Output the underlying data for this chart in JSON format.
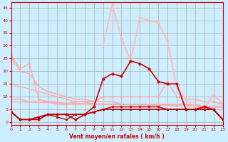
{
  "title": "",
  "xlabel": "Vent moyen/en rafales ( km/h )",
  "ylabel": "",
  "background_color": "#cceeff",
  "grid_color": "#aaaaaa",
  "xlim": [
    0,
    23
  ],
  "ylim": [
    -1,
    47
  ],
  "xticks": [
    0,
    1,
    2,
    3,
    4,
    5,
    6,
    7,
    8,
    9,
    10,
    11,
    12,
    13,
    14,
    15,
    16,
    17,
    18,
    19,
    20,
    21,
    22,
    23
  ],
  "yticks": [
    0,
    5,
    10,
    15,
    20,
    25,
    30,
    35,
    40,
    45
  ],
  "lines": [
    {
      "x": [
        0,
        1,
        2,
        3,
        4,
        5,
        6,
        7,
        8,
        9,
        10,
        11,
        12,
        13,
        14,
        15,
        16,
        17,
        18,
        19,
        20,
        21,
        22,
        23
      ],
      "y": [
        25,
        20,
        19,
        14,
        12,
        11,
        10,
        9,
        9,
        8,
        8,
        8,
        7,
        7,
        7,
        7,
        7,
        7,
        7,
        7,
        7,
        6,
        6,
        6
      ],
      "color": "#ffaaaa",
      "marker": null,
      "lw": 1.0
    },
    {
      "x": [
        0,
        1,
        2,
        3,
        4,
        5,
        6,
        7,
        8,
        9,
        10,
        11,
        12,
        13,
        14,
        15,
        16,
        17,
        18,
        19,
        20,
        21,
        22,
        23
      ],
      "y": [
        15,
        14,
        13,
        12,
        11,
        10,
        9,
        8,
        8,
        7,
        7,
        7,
        7,
        7,
        7,
        7,
        7,
        7,
        7,
        7,
        6,
        6,
        6,
        6
      ],
      "color": "#ffaaaa",
      "marker": null,
      "lw": 1.0
    },
    {
      "x": [
        0,
        1,
        2,
        3,
        4,
        5,
        6,
        7,
        8,
        9,
        10,
        11,
        12,
        13,
        14,
        15,
        16,
        17,
        18,
        19,
        20,
        21,
        22,
        23
      ],
      "y": [
        9,
        9,
        8,
        8,
        8,
        7,
        7,
        7,
        7,
        7,
        7,
        7,
        7,
        7,
        7,
        7,
        7,
        7,
        7,
        7,
        7,
        6,
        6,
        6
      ],
      "color": "#ffaaaa",
      "marker": null,
      "lw": 1.0
    },
    {
      "x": [
        0,
        23
      ],
      "y": [
        8,
        6
      ],
      "color": "#ffaaaa",
      "marker": null,
      "lw": 1.0
    },
    {
      "x": [
        0,
        1,
        2,
        3,
        4,
        5,
        6,
        7,
        8,
        9,
        10,
        11,
        12,
        13,
        14,
        15,
        16,
        17,
        18,
        19,
        20,
        21,
        22,
        23
      ],
      "y": [
        26,
        21,
        23,
        9,
        8,
        8,
        7,
        8,
        8,
        8,
        10,
        10,
        10,
        10,
        10,
        10,
        10,
        16,
        10,
        9,
        9,
        8,
        8,
        7
      ],
      "color": "#ffaaaa",
      "marker": "o",
      "lw": 1.0,
      "ms": 2.0
    },
    {
      "x": [
        0,
        1,
        2,
        3,
        4,
        5,
        6,
        7,
        8,
        9,
        10,
        11,
        12,
        13,
        14,
        15,
        16,
        17,
        18,
        19,
        20,
        21,
        22,
        23
      ],
      "y": [
        null,
        null,
        null,
        null,
        null,
        null,
        null,
        null,
        null,
        null,
        30,
        46,
        33,
        24,
        41,
        40,
        39,
        32,
        14,
        9,
        6,
        5,
        11,
        7
      ],
      "color": "#ffbbbb",
      "marker": "o",
      "lw": 1.3,
      "ms": 2.5
    },
    {
      "x": [
        0,
        1,
        2,
        3,
        4,
        5,
        6,
        7,
        8,
        9,
        10,
        11,
        12,
        13,
        14,
        15,
        16,
        17,
        18,
        19,
        20,
        21,
        22,
        23
      ],
      "y": [
        4,
        1,
        1,
        1,
        3,
        3,
        3,
        1,
        3,
        6,
        17,
        19,
        18,
        24,
        23,
        21,
        16,
        15,
        15,
        5,
        5,
        6,
        5,
        1
      ],
      "color": "#cc0000",
      "marker": "o",
      "lw": 1.2,
      "ms": 2.5
    },
    {
      "x": [
        0,
        1,
        2,
        3,
        4,
        5,
        6,
        7,
        8,
        9,
        10,
        11,
        12,
        13,
        14,
        15,
        16,
        17,
        18,
        19,
        20,
        21,
        22,
        23
      ],
      "y": [
        4,
        1,
        1,
        2,
        3,
        2,
        1,
        3,
        3,
        4,
        5,
        6,
        6,
        6,
        6,
        6,
        6,
        5,
        5,
        5,
        5,
        5,
        5,
        1
      ],
      "color": "#cc0000",
      "marker": "o",
      "lw": 1.0,
      "ms": 2.0
    },
    {
      "x": [
        0,
        1,
        2,
        3,
        4,
        5,
        6,
        7,
        8,
        9,
        10,
        11,
        12,
        13,
        14,
        15,
        16,
        17,
        18,
        19,
        20,
        21,
        22,
        23
      ],
      "y": [
        4,
        1,
        1,
        2,
        3,
        3,
        3,
        3,
        3,
        4,
        5,
        5,
        5,
        5,
        5,
        5,
        5,
        5,
        5,
        5,
        5,
        5,
        5,
        1
      ],
      "color": "#990000",
      "marker": "o",
      "lw": 1.0,
      "ms": 2.0
    },
    {
      "x": [
        0,
        1,
        2,
        3,
        4,
        5,
        6,
        7,
        8,
        9,
        10,
        11,
        12,
        13,
        14,
        15,
        16,
        17,
        18,
        19,
        20,
        21,
        22,
        23
      ],
      "y": [
        4,
        1,
        1,
        2,
        3,
        3,
        3,
        3,
        3,
        4,
        5,
        5,
        5,
        5,
        5,
        5,
        5,
        5,
        5,
        5,
        5,
        5,
        5,
        1
      ],
      "color": "#cc0000",
      "marker": null,
      "lw": 0.8
    }
  ]
}
